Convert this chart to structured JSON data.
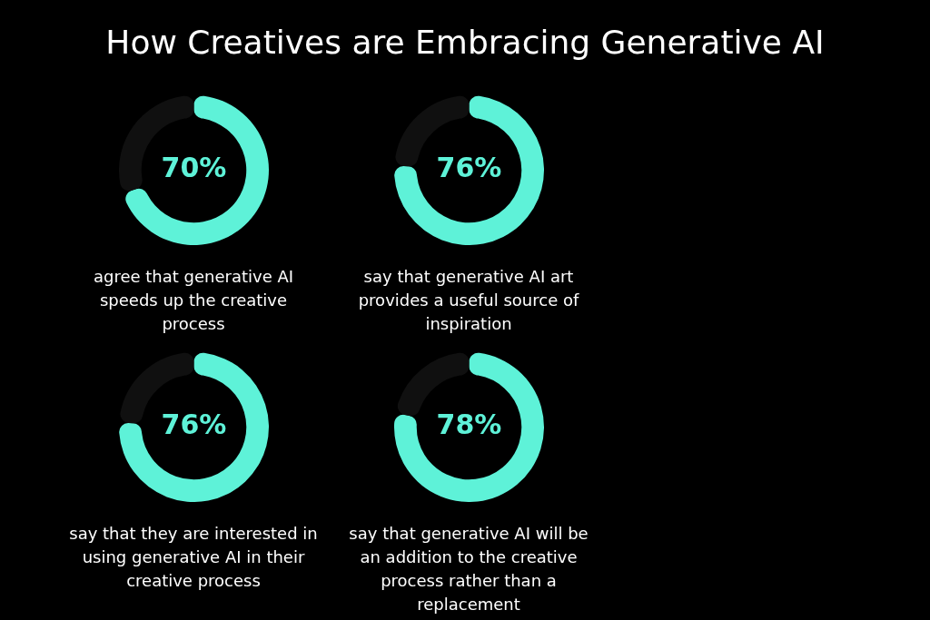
{
  "chart_data": [
    {
      "type": "donut",
      "title": "How Creatives are Embracing Generative AI",
      "categories": [
        null,
        null
      ],
      "values": [
        70,
        30
      ],
      "colors": [
        "#5ef2d8",
        "#101010"
      ],
      "value_labels": [
        "70%",
        null
      ],
      "annotations": [
        "agree that generative AI speeds up the creative process"
      ]
    },
    {
      "type": "donut",
      "categories": [
        null,
        null
      ],
      "values": [
        76,
        24
      ],
      "colors": [
        "#5ef2d8",
        "#101010"
      ],
      "value_labels": [
        "76%",
        null
      ],
      "annotations": [
        "say that generative AI art provides a useful source of inspiration"
      ]
    },
    {
      "type": "donut",
      "categories": [
        null,
        null
      ],
      "values": [
        76,
        24
      ],
      "colors": [
        "#5ef2d8",
        "#101010"
      ],
      "value_labels": [
        "76%",
        null
      ],
      "annotations": [
        "say that they are interested in using generative AI in their creative process"
      ]
    },
    {
      "type": "donut",
      "categories": [
        null,
        null
      ],
      "values": [
        78,
        22
      ],
      "colors": [
        "#5ef2d8",
        "#101010"
      ],
      "value_labels": [
        "78%",
        null
      ],
      "annotations": [
        "say that generative AI will be an addition to the creative process rather than a replacement"
      ]
    }
  ]
}
